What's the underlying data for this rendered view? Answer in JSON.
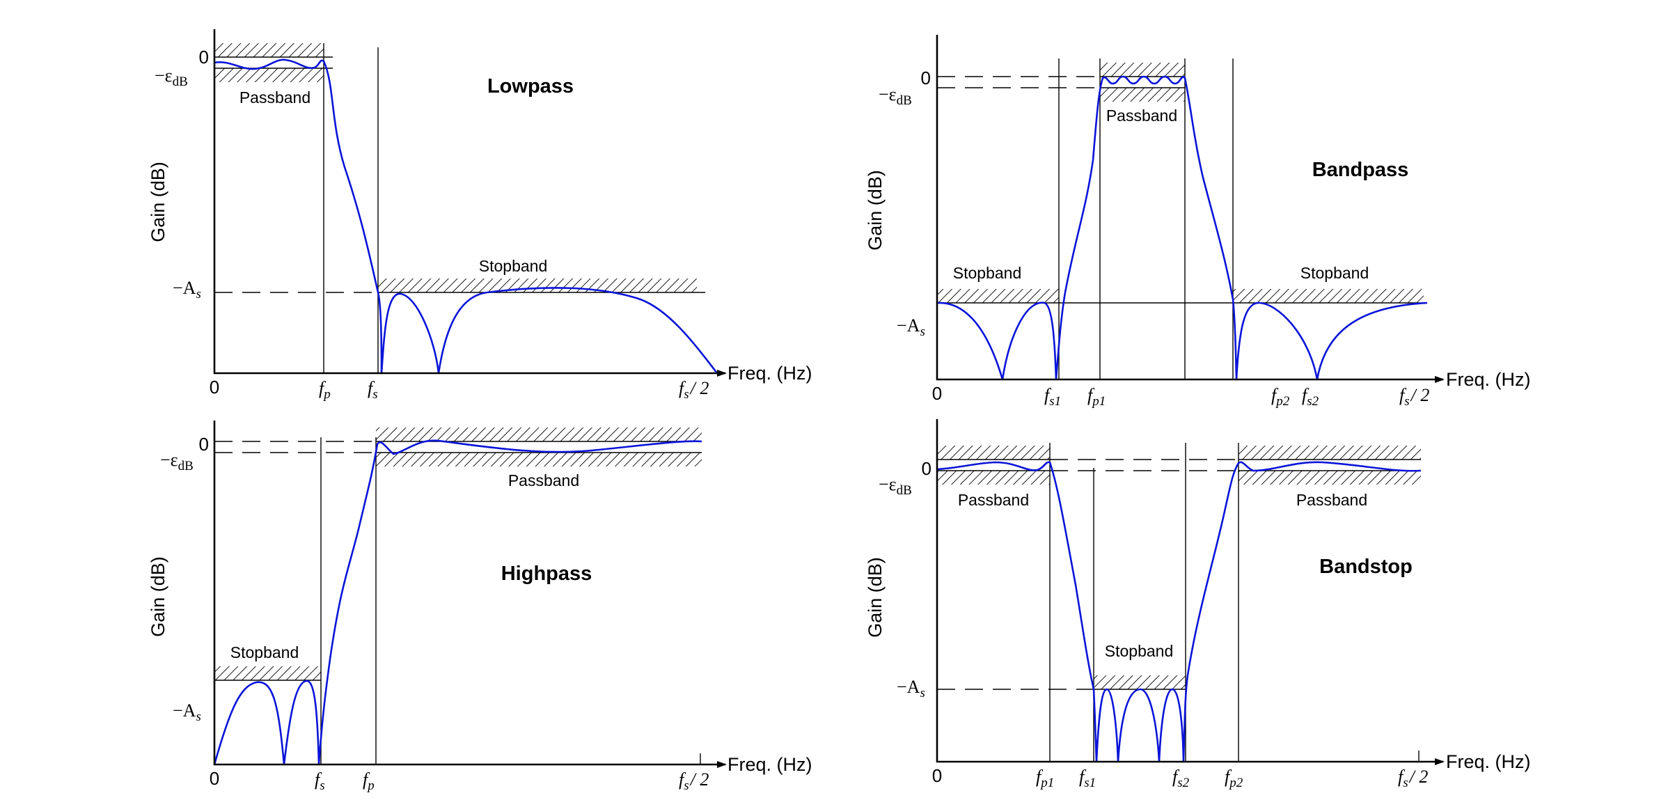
{
  "panels": {
    "lowpass": {
      "title": "Lowpass",
      "ylabel": "Gain (dB)",
      "xlabel": "Freq. (Hz)",
      "origin": "0",
      "passband_label": "Passband",
      "stopband_label": "Stopband",
      "y_zero": "0",
      "y_eps": "−ε",
      "y_eps_sub": "dB",
      "y_as": "−A",
      "y_as_sub": "s",
      "x_fp": "f",
      "x_fp_sub": "p",
      "x_fs": "f",
      "x_fs_sub": "s",
      "x_nyq": "f",
      "x_nyq_sub": "s",
      "x_nyq_tail": "/ 2"
    },
    "bandpass": {
      "title": "Bandpass",
      "ylabel": "Gain (dB)",
      "xlabel": "Freq. (Hz)",
      "origin": "0",
      "passband_label": "Passband",
      "stopband_left_label": "Stopband",
      "stopband_right_label": "Stopband",
      "y_zero": "0",
      "y_eps": "−ε",
      "y_eps_sub": "dB",
      "y_as": "−A",
      "y_as_sub": "s",
      "x_fs1": "f",
      "x_fs1_sub": "s1",
      "x_fp1": "f",
      "x_fp1_sub": "p1",
      "x_fp2": "f",
      "x_fp2_sub": "p2",
      "x_fs2": "f",
      "x_fs2_sub": "s2",
      "x_nyq": "f",
      "x_nyq_sub": "s",
      "x_nyq_tail": "/ 2"
    },
    "highpass": {
      "title": "Highpass",
      "ylabel": "Gain (dB)",
      "xlabel": "Freq. (Hz)",
      "origin": "0",
      "passband_label": "Passband",
      "stopband_label": "Stopband",
      "y_zero": "0",
      "y_eps": "−ε",
      "y_eps_sub": "dB",
      "y_as": "−A",
      "y_as_sub": "s",
      "x_fs": "f",
      "x_fs_sub": "s",
      "x_fp": "f",
      "x_fp_sub": "p",
      "x_nyq": "f",
      "x_nyq_sub": "s",
      "x_nyq_tail": "/ 2"
    },
    "bandstop": {
      "title": "Bandstop",
      "ylabel": "Gain (dB)",
      "xlabel": "Freq. (Hz)",
      "origin": "0",
      "passband_left_label": "Passband",
      "passband_right_label": "Passband",
      "stopband_label": "Stopband",
      "y_zero": "0",
      "y_eps": "−ε",
      "y_eps_sub": "dB",
      "y_as": "−A",
      "y_as_sub": "s",
      "x_fp1": "f",
      "x_fp1_sub": "p1",
      "x_fs1": "f",
      "x_fs1_sub": "s1",
      "x_fs2": "f",
      "x_fs2_sub": "s2",
      "x_fp2": "f",
      "x_fp2_sub": "p2",
      "x_nyq": "f",
      "x_nyq_sub": "s",
      "x_nyq_tail": "/ 2"
    }
  },
  "colors": {
    "response_curve": "#0a14d8",
    "axes": "#000000",
    "hatch": "#000000",
    "background": "#ffffff"
  }
}
